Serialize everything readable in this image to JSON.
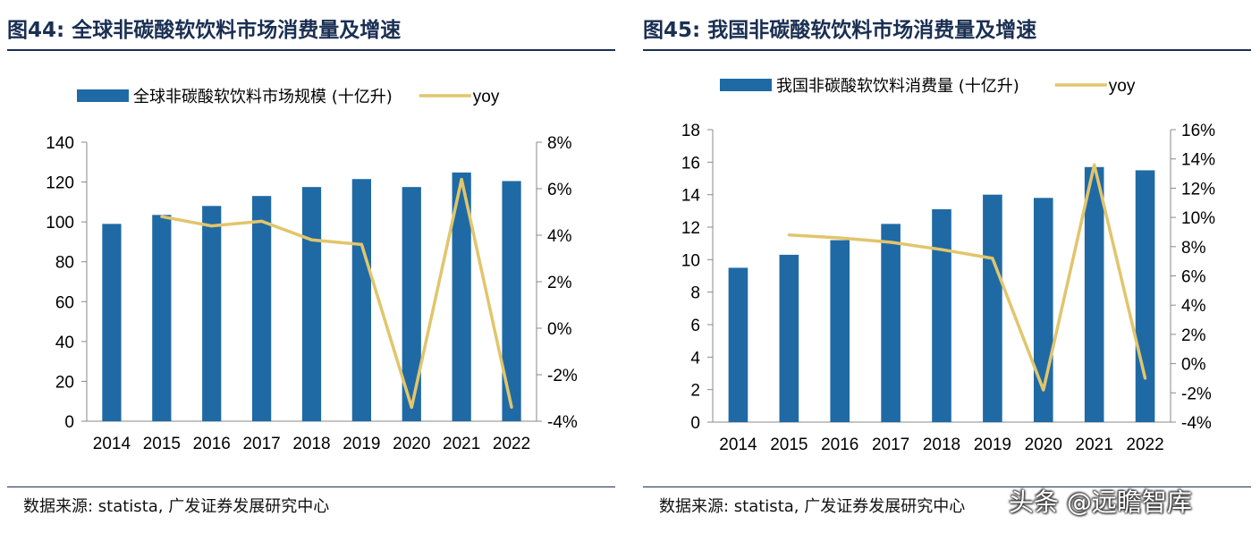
{
  "panels": [
    {
      "figure_title": "图44: 全球非碳酸软饮料市场消费量及增速",
      "source": "数据来源: statista, 广发证券发展研究中心"
    },
    {
      "figure_title": "图45: 我国非碳酸软饮料市场消费量及增速",
      "source": "数据来源: statista, 广发证券发展研究中心"
    }
  ],
  "watermark": "头条 @远瞻智库",
  "colors": {
    "bar": "#1f6aa5",
    "line": "#e2c56c",
    "axis": "#888888",
    "title": "#1a2f52"
  },
  "chart_data": [
    {
      "type": "bar+line",
      "categories": [
        "2014",
        "2015",
        "2016",
        "2017",
        "2018",
        "2019",
        "2020",
        "2021",
        "2022"
      ],
      "series": [
        {
          "name": "全球非碳酸软饮料市场规模 (十亿升)",
          "type": "bar",
          "axis": "left",
          "values": [
            99,
            103.5,
            108,
            113,
            117.5,
            121.5,
            117.5,
            124.8,
            120.5
          ]
        },
        {
          "name": "yoy",
          "type": "line",
          "axis": "right",
          "values": [
            null,
            4.8,
            4.4,
            4.6,
            3.8,
            3.6,
            -3.4,
            6.4,
            -3.4
          ]
        }
      ],
      "left_axis": {
        "min": 0,
        "max": 140,
        "step": 20,
        "ticks": [
          "0",
          "20",
          "40",
          "60",
          "80",
          "100",
          "120",
          "140"
        ]
      },
      "right_axis": {
        "min": -4,
        "max": 8,
        "step": 2,
        "ticks": [
          "-4%",
          "-2%",
          "0%",
          "2%",
          "4%",
          "6%",
          "8%"
        ]
      },
      "legend": "top"
    },
    {
      "type": "bar+line",
      "categories": [
        "2014",
        "2015",
        "2016",
        "2017",
        "2018",
        "2019",
        "2020",
        "2021",
        "2022"
      ],
      "series": [
        {
          "name": "我国非碳酸软饮料消费量 (十亿升)",
          "type": "bar",
          "axis": "left",
          "values": [
            9.5,
            10.3,
            11.2,
            12.2,
            13.1,
            14.0,
            13.8,
            15.7,
            15.5
          ]
        },
        {
          "name": "yoy",
          "type": "line",
          "axis": "right",
          "values": [
            null,
            8.8,
            8.6,
            8.3,
            7.8,
            7.2,
            -1.8,
            13.6,
            -1.0
          ]
        }
      ],
      "left_axis": {
        "min": 0,
        "max": 18,
        "step": 2,
        "ticks": [
          "0",
          "2",
          "4",
          "6",
          "8",
          "10",
          "12",
          "14",
          "16",
          "18"
        ]
      },
      "right_axis": {
        "min": -4,
        "max": 16,
        "step": 2,
        "ticks": [
          "-4%",
          "-2%",
          "0%",
          "2%",
          "4%",
          "6%",
          "8%",
          "10%",
          "12%",
          "14%",
          "16%"
        ]
      },
      "legend": "top"
    }
  ]
}
